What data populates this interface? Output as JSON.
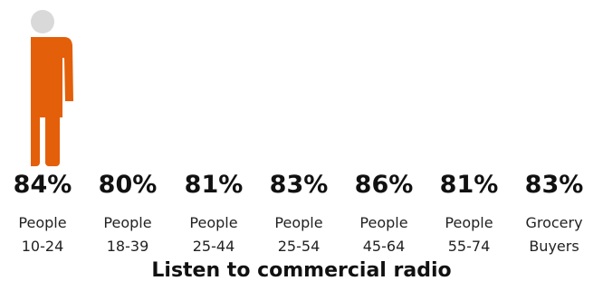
{
  "chart_data": {
    "type": "pictogram",
    "title": "Listen to commercial radio",
    "unit": "%",
    "categories": [
      {
        "line1": "People",
        "line2": "10-24",
        "value": 84,
        "figure": "male"
      },
      {
        "line1": "People",
        "line2": "18-39",
        "value": 80,
        "figure": "female"
      },
      {
        "line1": "People",
        "line2": "25-44",
        "value": 81,
        "figure": "male"
      },
      {
        "line1": "People",
        "line2": "25-54",
        "value": 83,
        "figure": "female"
      },
      {
        "line1": "People",
        "line2": "45-64",
        "value": 86,
        "figure": "male"
      },
      {
        "line1": "People",
        "line2": "55-74",
        "value": 81,
        "figure": "female"
      },
      {
        "line1": "Grocery",
        "line2": "Buyers",
        "value": 83,
        "figure": "male"
      }
    ],
    "colors": {
      "fill": "#e35f0a",
      "empty": "#d9d9d9"
    }
  }
}
